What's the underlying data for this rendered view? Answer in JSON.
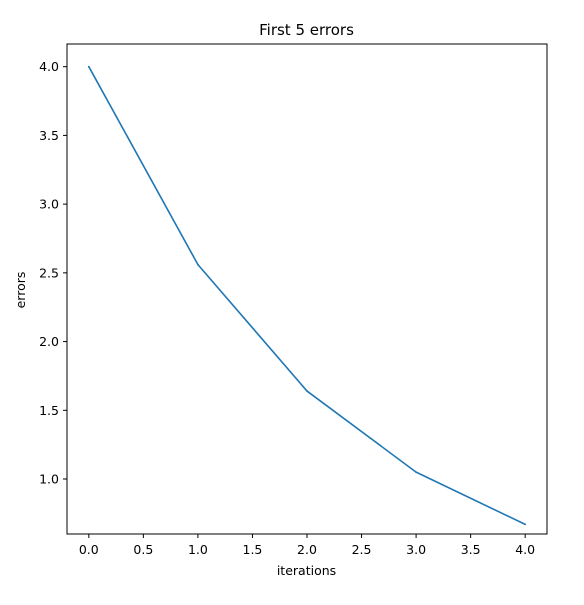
{
  "colors": {
    "series_line": "#1f77b4",
    "axes": "#000000",
    "background": "#ffffff"
  },
  "chart_data": {
    "type": "line",
    "title": "First 5 errors",
    "xlabel": "iterations",
    "ylabel": "errors",
    "xlim": [
      -0.2,
      4.2
    ],
    "ylim": [
      0.6,
      4.165
    ],
    "grid": false,
    "x_ticks": [
      0.0,
      0.5,
      1.0,
      1.5,
      2.0,
      2.5,
      3.0,
      3.5,
      4.0
    ],
    "x_tick_labels": [
      "0.0",
      "0.5",
      "1.0",
      "1.5",
      "2.0",
      "2.5",
      "3.0",
      "3.5",
      "4.0"
    ],
    "y_ticks": [
      1.0,
      1.5,
      2.0,
      2.5,
      3.0,
      3.5,
      4.0
    ],
    "y_tick_labels": [
      "1.0",
      "1.5",
      "2.0",
      "2.5",
      "3.0",
      "3.5",
      "4.0"
    ],
    "series": [
      {
        "x": [
          0,
          1,
          2,
          3,
          4
        ],
        "values": [
          4.0,
          2.56,
          1.64,
          1.05,
          0.67
        ]
      }
    ]
  }
}
